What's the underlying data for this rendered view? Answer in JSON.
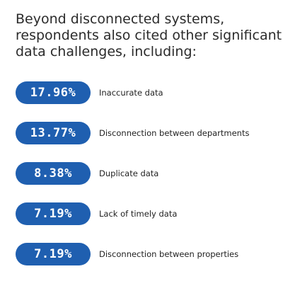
{
  "heading": {
    "lines": [
      "Beyond disconnected systems,",
      "respondents also cited other significant",
      "data challenges, including:"
    ]
  },
  "colors": {
    "pill": "#1f5fb0",
    "pill_text": "#ffffff",
    "heading_text": "#2b2b2b",
    "label_text": "#222222"
  },
  "stats": [
    {
      "value": "17.96%",
      "label": "Inaccurate data"
    },
    {
      "value": "13.77%",
      "label": "Disconnection between departments"
    },
    {
      "value": "8.38%",
      "label": "Duplicate data"
    },
    {
      "value": "7.19%",
      "label": "Lack of timely data"
    },
    {
      "value": "7.19%",
      "label": "Disconnection between properties"
    }
  ]
}
